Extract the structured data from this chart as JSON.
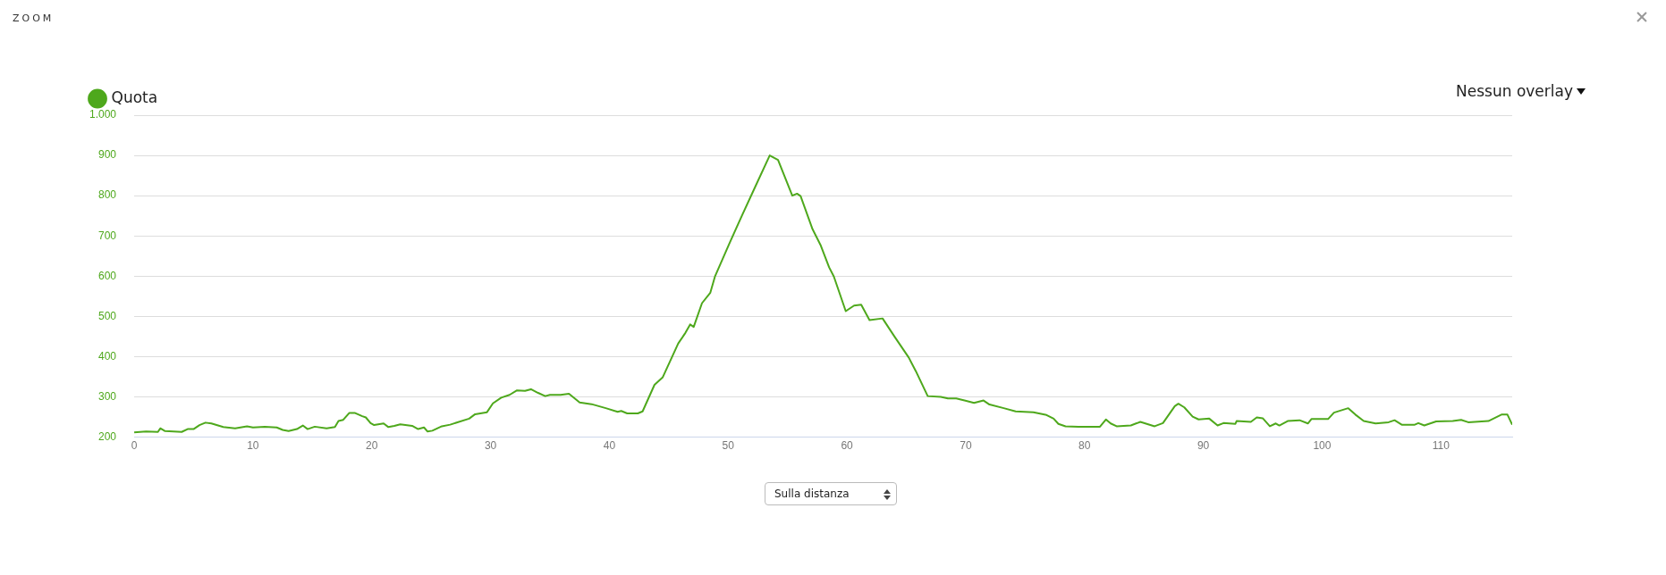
{
  "chart_data": {
    "type": "line",
    "title": "ZOOM",
    "annotations": [
      "Nessun overlay",
      "Sulla distanza"
    ],
    "xlim": [
      0,
      116
    ],
    "xticks": [
      0,
      10,
      20,
      30,
      40,
      50,
      60,
      70,
      80,
      90,
      100,
      110
    ],
    "ylim": [
      200,
      1000
    ],
    "yticks": [
      200,
      300,
      400,
      500,
      600,
      700,
      800,
      900,
      {
        "value": 1000,
        "label": "1.000"
      }
    ],
    "grid": "y",
    "legend": "top left",
    "marker": "none",
    "series": [
      {
        "name": "Quota",
        "color": "#4ea81c",
        "x": [
          0,
          1,
          2,
          2.2,
          2.6,
          4,
          4.5,
          5,
          5.5,
          6,
          6.5,
          7.5,
          8.5,
          9.5,
          10,
          11,
          12,
          12.5,
          13,
          13.7,
          14.2,
          14.6,
          15.2,
          16.2,
          16.9,
          17.2,
          17.6,
          18.1,
          18.6,
          19.2,
          19.5,
          19.9,
          20.2,
          21,
          21.4,
          21.9,
          22.4,
          23.4,
          23.9,
          24.4,
          24.7,
          25.1,
          25.9,
          26.6,
          28.2,
          28.7,
          29.7,
          30.2,
          30.9,
          31.6,
          32.2,
          32.9,
          33.4,
          34,
          34.6,
          35,
          35.9,
          36.6,
          37.5,
          38.5,
          39.7,
          40.7,
          41,
          41.5,
          42.4,
          42.8,
          43.8,
          44.5,
          45.8,
          46.4,
          46.8,
          47.1,
          47.8,
          48.5,
          48.9,
          50.1,
          51.2,
          52.2,
          53.5,
          54.2,
          55.4,
          55.8,
          56.1,
          57.1,
          57.8,
          58.5,
          58.9,
          59.9,
          60.6,
          61.2,
          61.9,
          63,
          64,
          65.2,
          65.8,
          66.8,
          67.9,
          68.5,
          69.2,
          69.9,
          70.7,
          71.5,
          72,
          73.2,
          74.2,
          75.7,
          76.8,
          77.4,
          77.8,
          78.4,
          79.5,
          81.3,
          81.8,
          82.2,
          82.7,
          83.9,
          84.7,
          85.9,
          86.6,
          87.6,
          87.9,
          88.4,
          89.1,
          89.6,
          90.5,
          91.2,
          91.7,
          92.7,
          92.8,
          94,
          94.5,
          95,
          95.6,
          96.1,
          96.4,
          97.1,
          98.1,
          98.8,
          99.1,
          100.5,
          101,
          102.2,
          102.8,
          103.5,
          104.5,
          105.6,
          106.1,
          106.7,
          107.8,
          108.1,
          108.6,
          109.6,
          111,
          111.7,
          112.3,
          114,
          115.1,
          115.6,
          116
        ],
        "values": [
          212,
          214,
          213,
          222,
          215,
          213,
          220,
          220,
          230,
          236,
          234,
          225,
          222,
          227,
          224,
          226,
          224,
          218,
          215,
          220,
          229,
          220,
          226,
          222,
          225,
          240,
          243,
          260,
          260,
          252,
          249,
          235,
          230,
          234,
          225,
          228,
          232,
          228,
          220,
          224,
          214,
          216,
          227,
          231,
          246,
          257,
          262,
          284,
          298,
          305,
          316,
          315,
          319,
          310,
          302,
          305,
          305,
          308,
          286,
          282,
          272,
          263,
          265,
          259,
          259,
          264,
          330,
          349,
          433,
          459,
          480,
          474,
          533,
          559,
          600,
          681,
          753,
          817,
          900,
          889,
          800,
          805,
          799,
          717,
          676,
          622,
          599,
          513,
          527,
          529,
          491,
          495,
          450,
          398,
          364,
          302,
          300,
          296,
          296,
          291,
          285,
          291,
          281,
          272,
          264,
          262,
          255,
          246,
          233,
          227,
          226,
          226,
          244,
          234,
          227,
          229,
          238,
          227,
          235,
          277,
          283,
          274,
          251,
          244,
          246,
          229,
          235,
          233,
          240,
          238,
          249,
          247,
          227,
          234,
          229,
          240,
          242,
          234,
          245,
          245,
          261,
          272,
          256,
          240,
          234,
          237,
          242,
          231,
          231,
          235,
          229,
          239,
          240,
          243,
          237,
          240,
          256,
          256,
          231
        ]
      }
    ]
  }
}
